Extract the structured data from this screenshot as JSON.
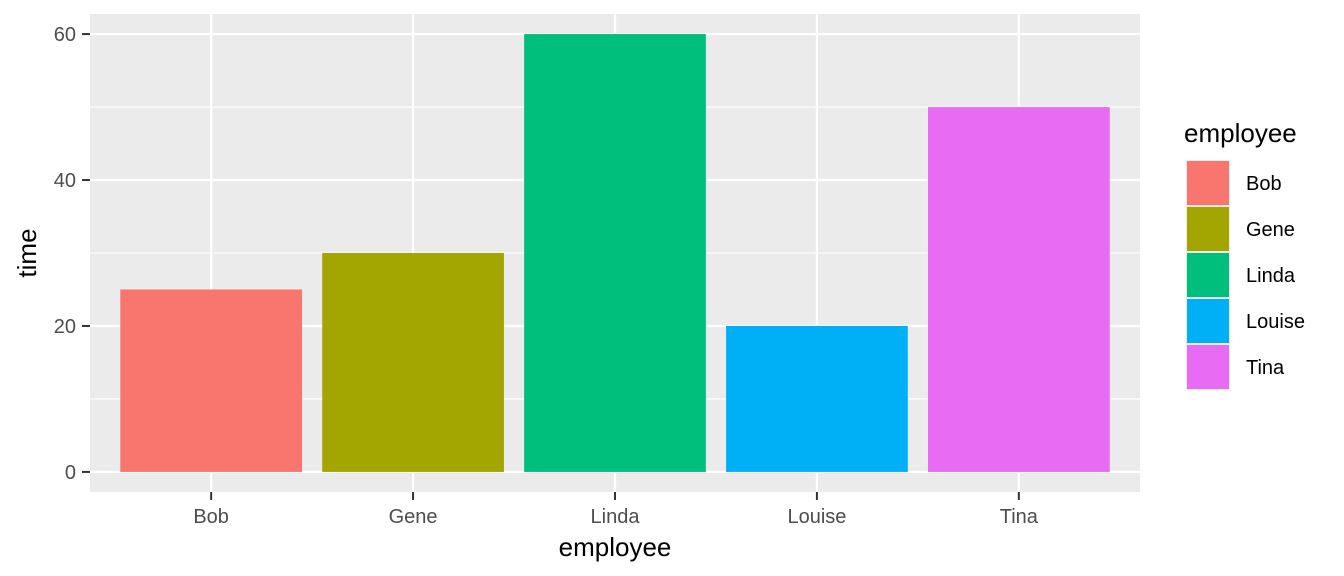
{
  "chart_data": {
    "type": "bar",
    "categories": [
      "Bob",
      "Gene",
      "Linda",
      "Louise",
      "Tina"
    ],
    "values": [
      25,
      30,
      60,
      20,
      50
    ],
    "colors": [
      "#F8766D",
      "#A3A500",
      "#00BF7D",
      "#00B0F6",
      "#E76BF3"
    ],
    "xlabel": "employee",
    "ylabel": "time",
    "ylim": [
      -2.75,
      62.75
    ],
    "yticks": [
      0,
      20,
      40,
      60
    ],
    "grid": true,
    "panel_background": "#EBEBEB",
    "gridline_color": "#FFFFFF",
    "legend": {
      "title": "employee",
      "placement": "right",
      "entries": [
        "Bob",
        "Gene",
        "Linda",
        "Louise",
        "Tina"
      ]
    }
  }
}
